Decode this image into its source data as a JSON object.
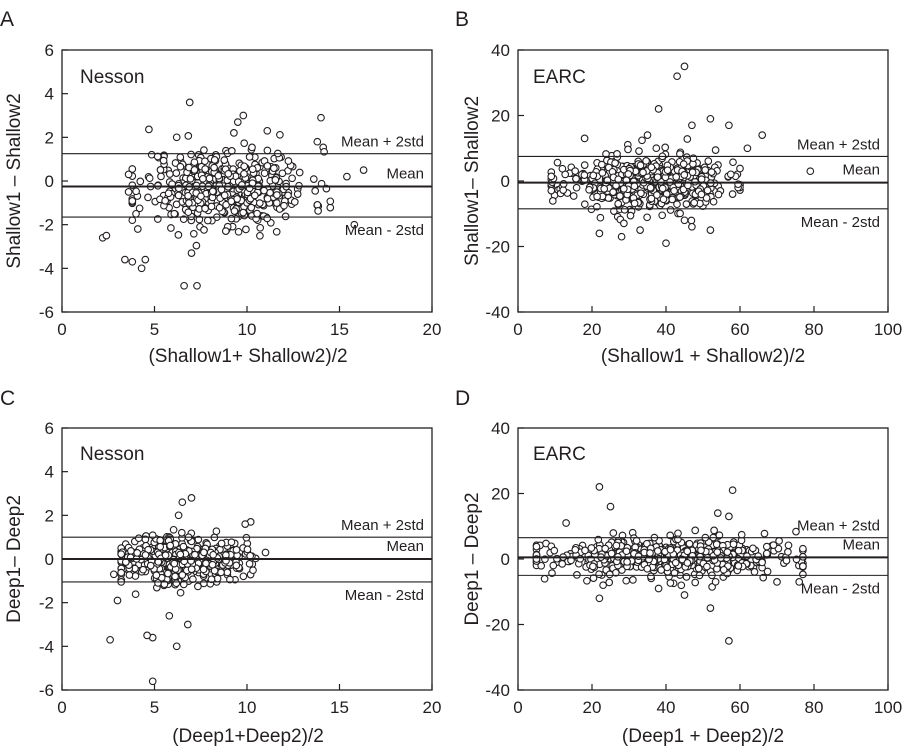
{
  "chart_data": [
    {
      "panel": "A",
      "type": "scatter",
      "title": "Nesson",
      "xlabel": "(Shallow1+ Shallow2)/2",
      "ylabel": "Shallow1 – Shallow2",
      "xlim": [
        0,
        20
      ],
      "ylim": [
        -6,
        6
      ],
      "xticks": [
        "0",
        "5",
        "10",
        "15",
        "20"
      ],
      "yticks": [
        "-6",
        "-4",
        "-2",
        "0",
        "2",
        "4",
        "6"
      ],
      "lines": [
        {
          "label": "Mean + 2std",
          "y": 1.25
        },
        {
          "label": "Mean",
          "y": -0.25
        },
        {
          "label": "Mean - 2std",
          "y": -1.65
        }
      ],
      "outliers": [
        [
          6.9,
          3.6
        ],
        [
          9.8,
          3.0
        ],
        [
          14.0,
          2.9
        ],
        [
          9.5,
          2.7
        ],
        [
          11.1,
          2.3
        ],
        [
          6.2,
          2.0
        ],
        [
          6.6,
          -4.8
        ],
        [
          7.3,
          -4.8
        ],
        [
          4.3,
          -4.0
        ],
        [
          3.4,
          -3.6
        ],
        [
          3.8,
          -3.7
        ],
        [
          4.5,
          -3.6
        ],
        [
          2.2,
          -2.6
        ],
        [
          2.4,
          -2.5
        ],
        [
          15.8,
          -2.0
        ],
        [
          15.4,
          0.2
        ],
        [
          16.3,
          0.5
        ],
        [
          3.6,
          0.3
        ],
        [
          3.6,
          -0.5
        ],
        [
          4.1,
          -2.2
        ],
        [
          4.0,
          -1.5
        ],
        [
          13.8,
          1.8
        ],
        [
          7.0,
          -3.3
        ]
      ],
      "cloud": {
        "n": 460,
        "x": [
          3.8,
          14.5
        ],
        "y_sd": 0.9,
        "x_center": 8.8,
        "x_sd": 2.3,
        "seed": 11
      }
    },
    {
      "panel": "B",
      "type": "scatter",
      "title": "EARC",
      "xlabel": "(Shallow1 + Shallow2)/2",
      "ylabel": "Shallow1– Shallow2",
      "xlim": [
        0,
        100
      ],
      "ylim": [
        -40,
        40
      ],
      "xticks": [
        "0",
        "20",
        "40",
        "60",
        "80",
        "100"
      ],
      "yticks": [
        "-40",
        "-20",
        "0",
        "20",
        "40"
      ],
      "lines": [
        {
          "label": "Mean + 2std",
          "y": 7.5
        },
        {
          "label": "Mean",
          "y": -0.5
        },
        {
          "label": "Mean - 2std",
          "y": -8.5
        }
      ],
      "outliers": [
        [
          45,
          35
        ],
        [
          43,
          32
        ],
        [
          38,
          22
        ],
        [
          52,
          19
        ],
        [
          57,
          17
        ],
        [
          18,
          13
        ],
        [
          47,
          17
        ],
        [
          35,
          14
        ],
        [
          66,
          14
        ],
        [
          62,
          10
        ],
        [
          79,
          3
        ],
        [
          40,
          -19
        ],
        [
          22,
          -16
        ],
        [
          28,
          -17
        ],
        [
          52,
          -15
        ],
        [
          33,
          -15
        ],
        [
          47,
          -14
        ],
        [
          45,
          -12
        ],
        [
          58,
          -4
        ]
      ],
      "cloud": {
        "n": 520,
        "x": [
          9,
          60
        ],
        "y_sd": 4.2,
        "x_center": 34,
        "x_sd": 11,
        "seed": 23
      }
    },
    {
      "panel": "C",
      "type": "scatter",
      "title": "Nesson",
      "xlabel": "(Deep1+Deep2)/2",
      "ylabel": "Deep1– Deep2",
      "xlim": [
        0,
        20
      ],
      "ylim": [
        -6,
        6
      ],
      "xticks": [
        "0",
        "5",
        "10",
        "15",
        "20"
      ],
      "yticks": [
        "-6",
        "-4",
        "-2",
        "0",
        "2",
        "4",
        "6"
      ],
      "lines": [
        {
          "label": "Mean + 2std",
          "y": 1.0
        },
        {
          "label": "Mean",
          "y": 0.0
        },
        {
          "label": "Mean - 2std",
          "y": -1.05
        }
      ],
      "outliers": [
        [
          7.0,
          2.8
        ],
        [
          6.5,
          2.6
        ],
        [
          6.3,
          2.0
        ],
        [
          6.2,
          -4.0
        ],
        [
          4.9,
          -5.6
        ],
        [
          4.9,
          -3.6
        ],
        [
          4.6,
          -3.5
        ],
        [
          2.6,
          -3.7
        ],
        [
          6.8,
          -3.0
        ],
        [
          2.8,
          -0.7
        ],
        [
          3.0,
          -1.9
        ],
        [
          10.2,
          1.7
        ],
        [
          9.9,
          1.6
        ],
        [
          5.8,
          -2.6
        ],
        [
          11.0,
          0.3
        ]
      ],
      "cloud": {
        "n": 440,
        "x": [
          3.2,
          10.8
        ],
        "y_sd": 0.55,
        "x_center": 6.4,
        "x_sd": 1.7,
        "seed": 37
      }
    },
    {
      "panel": "D",
      "type": "scatter",
      "title": "EARC",
      "xlabel": "(Deep1 + Deep2)/2",
      "ylabel": "Deep1 – Deep2",
      "xlim": [
        0,
        100
      ],
      "ylim": [
        -40,
        40
      ],
      "xticks": [
        "0",
        "20",
        "40",
        "60",
        "80",
        "100"
      ],
      "yticks": [
        "-40",
        "-20",
        "0",
        "20",
        "40"
      ],
      "lines": [
        {
          "label": "Mean + 2std",
          "y": 6.5
        },
        {
          "label": "Mean",
          "y": 0.5
        },
        {
          "label": "Mean - 2std",
          "y": -5.0
        }
      ],
      "outliers": [
        [
          22,
          22
        ],
        [
          58,
          21
        ],
        [
          25,
          16
        ],
        [
          13,
          11
        ],
        [
          54,
          14
        ],
        [
          57,
          13
        ],
        [
          22,
          -12
        ],
        [
          57,
          -25
        ],
        [
          52,
          -15
        ],
        [
          45,
          -11
        ],
        [
          38,
          -9
        ],
        [
          23,
          -8
        ],
        [
          70,
          -7
        ],
        [
          76,
          -7
        ]
      ],
      "cloud": {
        "n": 560,
        "x": [
          5,
          77
        ],
        "y_sd": 3.0,
        "x_center": 42,
        "x_sd": 18,
        "seed": 53
      }
    }
  ]
}
